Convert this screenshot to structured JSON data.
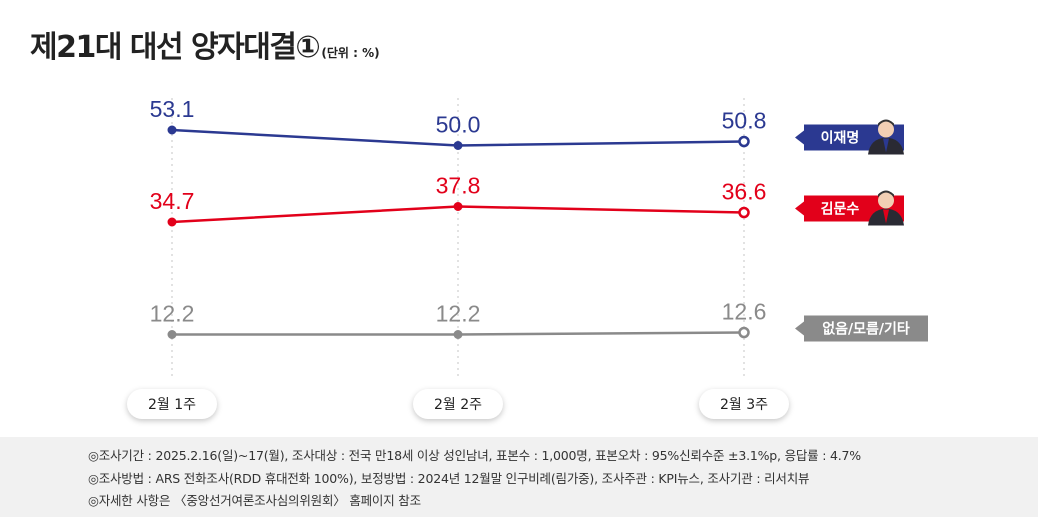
{
  "title": "제21대 대선 양자대결①",
  "unit": "(단위 : %)",
  "chart_data": {
    "type": "line",
    "categories": [
      "2월 1주",
      "2월 2주",
      "2월 3주"
    ],
    "series": [
      {
        "name": "이재명",
        "values": [
          53.1,
          50.0,
          50.8
        ],
        "color": "#2b3991"
      },
      {
        "name": "김문수",
        "values": [
          34.7,
          37.8,
          36.6
        ],
        "color": "#e2001a"
      },
      {
        "name": "없음/모름/기타",
        "values": [
          12.2,
          12.2,
          12.6
        ],
        "color": "#8a8a8a"
      }
    ],
    "value_labels": [
      "53.1",
      "50.0",
      "50.8",
      "34.7",
      "37.8",
      "36.6",
      "12.2",
      "12.2",
      "12.6"
    ],
    "legend_placement": "right",
    "grid": false
  },
  "footer": [
    "◎조사기간 : 2025.2.16(일)~17(월), 조사대상 : 전국 만18세 이상 성인남녀, 표본수 : 1,000명, 표본오차 : 95%신뢰수준 ±3.1%p, 응답률 : 4.7%",
    "◎조사방법 : ARS 전화조사(RDD 휴대전화 100%), 보정방법 : 2024년 12월말 인구비례(림가중), 조사주관 : KPI뉴스, 조사기관 : 리서치뷰",
    "◎자세한 사항은 〈중앙선거여론조사심의위원회〉 홈페이지 참조"
  ]
}
